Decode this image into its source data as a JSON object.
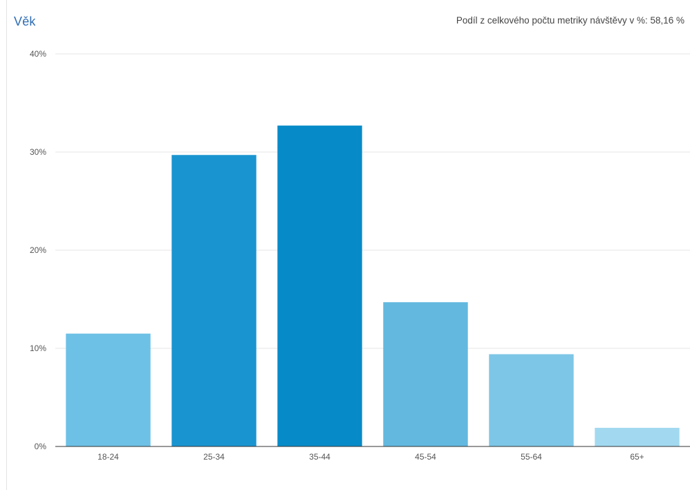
{
  "chart_data": {
    "type": "bar",
    "title": "Věk",
    "subtitle": "Podíl z celkového počtu metriky návštěvy v %: 58,16 %",
    "categories": [
      "18-24",
      "25-34",
      "35-44",
      "45-54",
      "55-64",
      "65+"
    ],
    "values": [
      11.5,
      29.7,
      32.7,
      14.7,
      9.4,
      1.9
    ],
    "ylim": [
      0,
      40
    ],
    "yticks": [
      0,
      10,
      20,
      30,
      40
    ],
    "ytick_labels": [
      "0%",
      "10%",
      "20%",
      "30%",
      "40%"
    ],
    "grid": true,
    "legend": "none",
    "colors": [
      "#6ec1e6",
      "#1a94d0",
      "#078bc8",
      "#62b8df",
      "#7dc6e7",
      "#a2d9f0"
    ]
  }
}
